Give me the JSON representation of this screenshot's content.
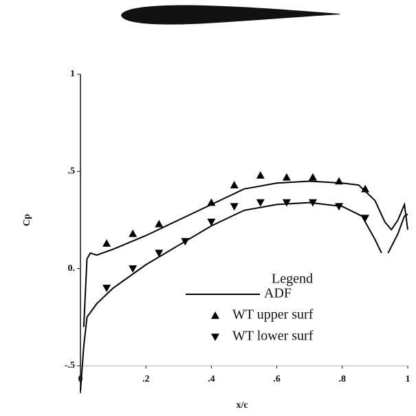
{
  "chart_data": {
    "type": "line",
    "xlabel": "x/c",
    "ylabel": "Cp",
    "legend_title": "Legend",
    "xlim": [
      0,
      1
    ],
    "ylim": [
      -0.5,
      1
    ],
    "xticks": [
      0,
      {
        "value": 0.2,
        "label": ".2"
      },
      {
        "value": 0.4,
        "label": ".4"
      },
      {
        "value": 0.6,
        "label": ".6"
      },
      {
        "value": 0.8,
        "label": ".8"
      },
      1
    ],
    "yticks": [
      {
        "value": -0.5,
        "label": "-.5"
      },
      {
        "value": 0,
        "label": "0."
      },
      {
        "value": 0.5,
        "label": ".5"
      },
      1
    ],
    "series": [
      {
        "name": "ADF",
        "color": "#000000",
        "marker": "line",
        "x": [
          0.01,
          0.02,
          0.03,
          0.05,
          0.1,
          0.2,
          0.3,
          0.4,
          0.5,
          0.6,
          0.7,
          0.8,
          0.85,
          0.9,
          0.93,
          0.95,
          0.97,
          0.99,
          1.0,
          null,
          0.0,
          0.01,
          0.02,
          0.05,
          0.1,
          0.2,
          0.3,
          0.4,
          0.5,
          0.6,
          0.7,
          0.8,
          0.86,
          0.9,
          0.92,
          null,
          0.94,
          0.97,
          0.99,
          1.0
        ],
        "values": [
          -0.3,
          0.05,
          0.08,
          0.07,
          0.1,
          0.17,
          0.25,
          0.33,
          0.41,
          0.44,
          0.45,
          0.44,
          0.43,
          0.35,
          0.24,
          0.2,
          0.25,
          0.33,
          0.2,
          null,
          -0.63,
          -0.4,
          -0.25,
          -0.18,
          -0.1,
          0.02,
          0.12,
          0.22,
          0.3,
          0.33,
          0.34,
          0.32,
          0.27,
          0.15,
          0.08,
          null,
          0.08,
          0.18,
          0.27,
          0.28
        ]
      },
      {
        "name": "WT upper surf",
        "color": "#000000",
        "marker": "triangle-up",
        "x": [
          0.08,
          0.16,
          0.24,
          0.4,
          0.47,
          0.55,
          0.63,
          0.71,
          0.79,
          0.87
        ],
        "values": [
          0.13,
          0.18,
          0.23,
          0.34,
          0.43,
          0.48,
          0.47,
          0.47,
          0.45,
          0.41
        ]
      },
      {
        "name": "WT lower surf",
        "color": "#000000",
        "marker": "triangle-down",
        "x": [
          0.08,
          0.16,
          0.24,
          0.32,
          0.4,
          0.47,
          0.55,
          0.63,
          0.71,
          0.79,
          0.87
        ],
        "values": [
          -0.1,
          0.0,
          0.08,
          0.14,
          0.24,
          0.32,
          0.34,
          0.34,
          0.34,
          0.32,
          0.26
        ]
      }
    ]
  }
}
